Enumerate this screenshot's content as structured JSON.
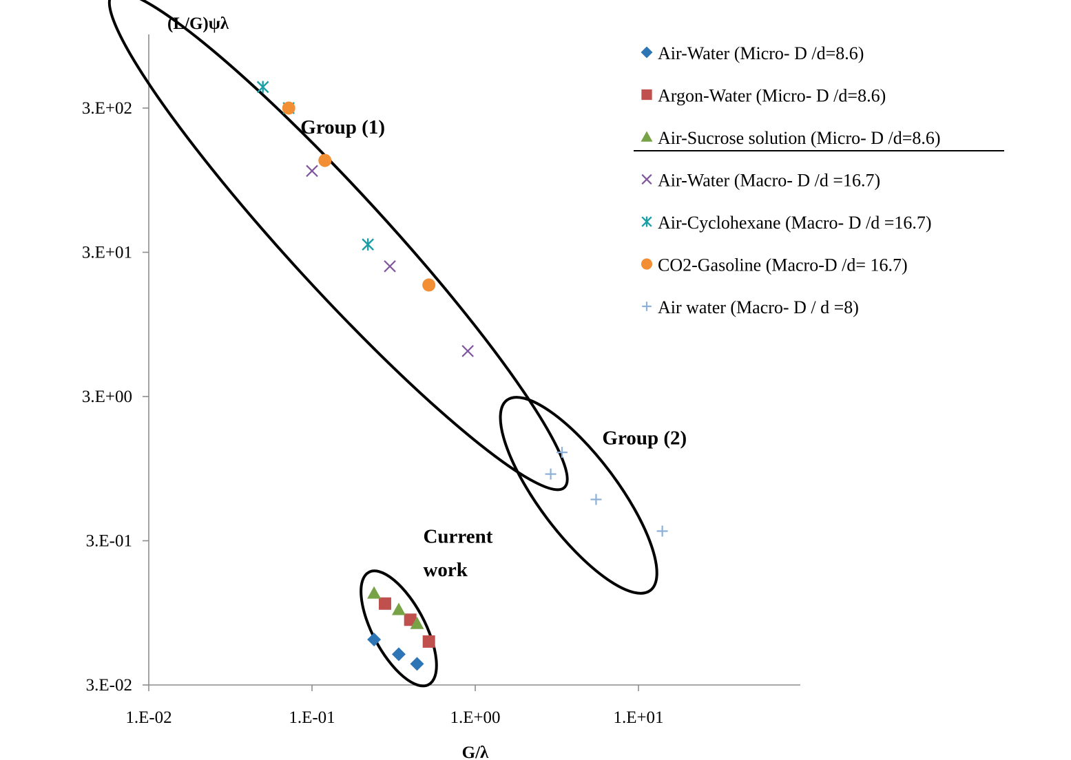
{
  "chart_data": {
    "type": "scatter",
    "xscale": "log",
    "yscale": "log",
    "xlim": [
      0.01,
      100
    ],
    "ylim": [
      0.03,
      3000
    ],
    "xlabel": "G/λ",
    "ylabel": "(L/G)ψλ",
    "x_ticks": [
      {
        "value": 0.01,
        "label": "1.E-02"
      },
      {
        "value": 0.1,
        "label": "1.E-01"
      },
      {
        "value": 1,
        "label": "1.E+00"
      },
      {
        "value": 10,
        "label": "1.E+01"
      }
    ],
    "y_ticks": [
      {
        "value": 0.03,
        "label": "3.E-02"
      },
      {
        "value": 0.3,
        "label": "3.E-01"
      },
      {
        "value": 3,
        "label": "3.E+00"
      },
      {
        "value": 30,
        "label": "3.E+01"
      },
      {
        "value": 300,
        "label": "3.E+02"
      }
    ],
    "legend_position": "top-right",
    "series": [
      {
        "name": "Air-Water (Micro-  D /d=8.6)",
        "marker": "diamond",
        "color": "#2e75b6",
        "points": [
          [
            0.24,
            0.062
          ],
          [
            0.34,
            0.049
          ],
          [
            0.44,
            0.042
          ]
        ]
      },
      {
        "name": "Argon-Water (Micro-  D /d=8.6)",
        "marker": "square",
        "color": "#c0504d",
        "points": [
          [
            0.28,
            0.11
          ],
          [
            0.4,
            0.085
          ],
          [
            0.52,
            0.06
          ]
        ]
      },
      {
        "name": "Air-Sucrose solution  (Micro-  D /d=8.6)",
        "marker": "triangle",
        "color": "#77a346",
        "points": [
          [
            0.24,
            0.13
          ],
          [
            0.34,
            0.1
          ],
          [
            0.44,
            0.08
          ]
        ]
      },
      {
        "name": "Air-Water (Macro-   D /d =16.7)",
        "marker": "x",
        "color": "#7f569d",
        "points": [
          [
            0.1,
            110
          ],
          [
            0.3,
            24
          ],
          [
            0.9,
            6.2
          ]
        ]
      },
      {
        "name": "Air-Cyclohexane (Macro-  D /d =16.7)",
        "marker": "star",
        "color": "#1b9ea5",
        "points": [
          [
            0.05,
            420
          ],
          [
            0.072,
            300
          ],
          [
            0.22,
            34
          ]
        ]
      },
      {
        "name": "CO2-Gasoline (Macro-D  /d= 16.7)",
        "marker": "circle",
        "color": "#f28e34",
        "points": [
          [
            0.072,
            300
          ],
          [
            0.12,
            130
          ],
          [
            0.52,
            17.8
          ]
        ]
      },
      {
        "name": "Air water (Macro-  D / d =8)",
        "marker": "plus",
        "color": "#8db0d8",
        "points": [
          [
            3.4,
            1.23
          ],
          [
            2.9,
            0.87
          ],
          [
            5.5,
            0.58
          ],
          [
            14,
            0.35
          ]
        ]
      }
    ],
    "annotations": [
      {
        "text": "Group (1)",
        "x": 0.085,
        "y": 200
      },
      {
        "text": "Group (2)",
        "x": 6,
        "y": 1.4
      },
      {
        "text": "Current",
        "x": 0.48,
        "y": 0.29
      },
      {
        "text": "work",
        "x": 0.48,
        "y": 0.17
      }
    ],
    "ellipses": [
      {
        "cx": 0.145,
        "cy": 36,
        "rx_decades": 2.05,
        "ry_decades": 0.3,
        "tilt_deg": 47.5
      },
      {
        "cx": 4.3,
        "cy": 0.62,
        "rx_decades": 0.73,
        "ry_decades": 0.24,
        "tilt_deg": 53
      },
      {
        "cx": 0.34,
        "cy": 0.074,
        "rx_decades": 0.39,
        "ry_decades": 0.16,
        "tilt_deg": 62
      }
    ]
  }
}
